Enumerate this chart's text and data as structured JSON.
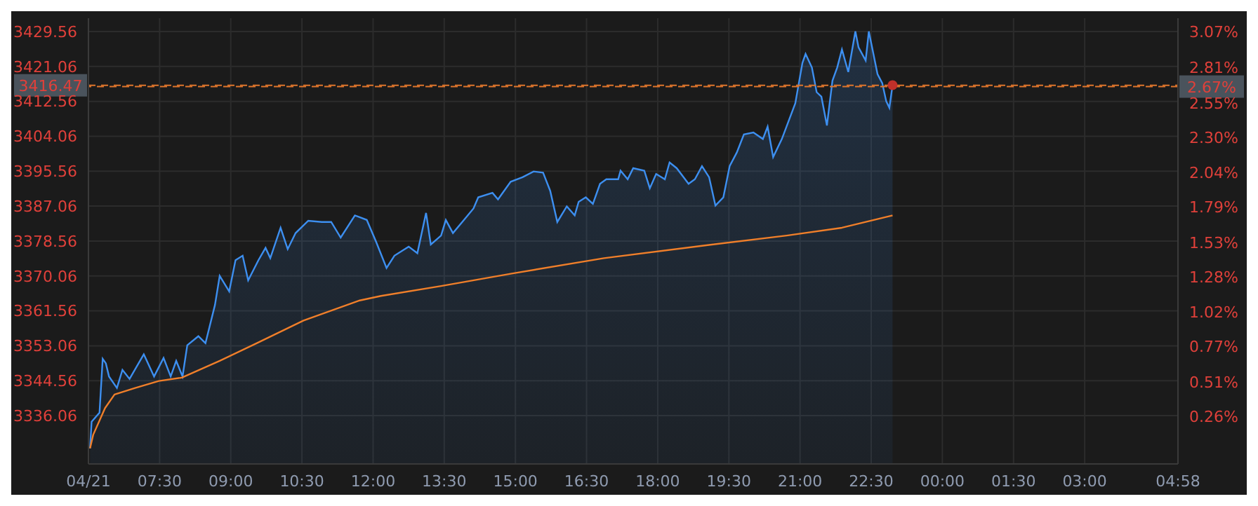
{
  "chart_data": {
    "type": "line",
    "xlim": [
      "--04-21T06:00",
      "--04-22T04:58"
    ],
    "xticks": [
      {
        "value": "--04-21T06:00",
        "label": "04/21"
      },
      {
        "value": "--04-21T07:30",
        "label": "07:30"
      },
      {
        "value": "--04-21T09:00",
        "label": "09:00"
      },
      {
        "value": "--04-21T10:30",
        "label": "10:30"
      },
      {
        "value": "--04-21T12:00",
        "label": "12:00"
      },
      {
        "value": "--04-21T13:30",
        "label": "13:30"
      },
      {
        "value": "--04-21T15:00",
        "label": "15:00"
      },
      {
        "value": "--04-21T16:30",
        "label": "16:30"
      },
      {
        "value": "--04-21T18:00",
        "label": "18:00"
      },
      {
        "value": "--04-21T19:30",
        "label": "19:30"
      },
      {
        "value": "--04-21T21:00",
        "label": "21:00"
      },
      {
        "value": "--04-21T22:30",
        "label": "22:30"
      },
      {
        "value": "--04-22T00:00",
        "label": "00:00"
      },
      {
        "value": "--04-22T01:30",
        "label": "01:30"
      },
      {
        "value": "--04-22T03:00",
        "label": "03:00"
      },
      {
        "value": "--04-22T04:58",
        "label": "04:58"
      }
    ],
    "ylim": [
      3324.3,
      3432.8
    ],
    "yticks": [
      3336.06,
      3344.56,
      3353.06,
      3361.56,
      3370.06,
      3378.56,
      3387.06,
      3395.56,
      3404.06,
      3412.56,
      3421.06,
      3429.56
    ],
    "y2lim": [
      -0.09,
      3.17
    ],
    "y2ticks": [
      {
        "value": 0.26,
        "label": "0.26%"
      },
      {
        "value": 0.51,
        "label": "0.51%"
      },
      {
        "value": 0.77,
        "label": "0.77%"
      },
      {
        "value": 1.02,
        "label": "1.02%"
      },
      {
        "value": 1.28,
        "label": "1.28%"
      },
      {
        "value": 1.53,
        "label": "1.53%"
      },
      {
        "value": 1.79,
        "label": "1.79%"
      },
      {
        "value": 2.04,
        "label": "2.04%"
      },
      {
        "value": 2.3,
        "label": "2.30%"
      },
      {
        "value": 2.55,
        "label": "2.55%"
      },
      {
        "value": 2.81,
        "label": "2.81%"
      },
      {
        "value": 3.07,
        "label": "3.07%"
      }
    ],
    "grid": true,
    "line_style": "solid",
    "ref_lines": [
      {
        "axis": "y",
        "value": 3416.47,
        "label": "3416.47",
        "color": "#e0762c",
        "line_style": "dashed"
      },
      {
        "axis": "y2",
        "value": 2.67,
        "label": "2.67%",
        "color": "#e0762c",
        "line_style": "dashed"
      }
    ],
    "series": [
      {
        "type": "area",
        "color": "#3d8ff0",
        "x": [
          "--04-21T06:02",
          "--04-21T06:04",
          "--04-21T06:14",
          "--04-21T06:18",
          "--04-21T06:22",
          "--04-21T06:26",
          "--04-21T06:36",
          "--04-21T06:43",
          "--04-21T06:52",
          "--04-21T07:10",
          "--04-21T07:23",
          "--04-21T07:35",
          "--04-21T07:44",
          "--04-21T07:51",
          "--04-21T07:59",
          "--04-21T08:05",
          "--04-21T08:19",
          "--04-21T08:28",
          "--04-21T08:40",
          "--04-21T08:46",
          "--04-21T08:58",
          "--04-21T09:06",
          "--04-21T09:15",
          "--04-21T09:22",
          "--04-21T09:35",
          "--04-21T09:44",
          "--04-21T09:50",
          "--04-21T10:03",
          "--04-21T10:12",
          "--04-21T10:22",
          "--04-21T10:38",
          "--04-21T10:55",
          "--04-21T11:07",
          "--04-21T11:19",
          "--04-21T11:37",
          "--04-21T11:52",
          "--04-21T12:04",
          "--04-21T12:17",
          "--04-21T12:27",
          "--04-21T12:45",
          "--04-21T12:56",
          "--04-21T13:07",
          "--04-21T13:13",
          "--04-21T13:26",
          "--04-21T13:32",
          "--04-21T13:41",
          "--04-21T13:55",
          "--04-21T14:07",
          "--04-21T14:13",
          "--04-21T14:31",
          "--04-21T14:38",
          "--04-21T14:54",
          "--04-21T15:09",
          "--04-21T15:23",
          "--04-21T15:35",
          "--04-21T15:44",
          "--04-21T15:53",
          "--04-21T16:05",
          "--04-21T16:15",
          "--04-21T16:20",
          "--04-21T16:29",
          "--04-21T16:38",
          "--04-21T16:47",
          "--04-21T16:55",
          "--04-21T17:10",
          "--04-21T17:13",
          "--04-21T17:22",
          "--04-21T17:29",
          "--04-21T17:43",
          "--04-21T17:50",
          "--04-21T17:58",
          "--04-21T18:09",
          "--04-21T18:15",
          "--04-21T18:24",
          "--04-21T18:39",
          "--04-21T18:47",
          "--04-21T18:56",
          "--04-21T19:05",
          "--04-21T19:13",
          "--04-21T19:23",
          "--04-21T19:31",
          "--04-21T19:40",
          "--04-21T19:49",
          "--04-21T20:01",
          "--04-21T20:13",
          "--04-21T20:19",
          "--04-21T20:26",
          "--04-21T20:37",
          "--04-21T20:54",
          "--04-21T21:03",
          "--04-21T21:07",
          "--04-21T21:15",
          "--04-21T21:21",
          "--04-21T21:27",
          "--04-21T21:34",
          "--04-21T21:41",
          "--04-21T21:47",
          "--04-21T21:53",
          "--04-21T22:01",
          "--04-21T22:10",
          "--04-21T22:14",
          "--04-21T22:23",
          "--04-21T22:27",
          "--04-21T22:38",
          "--04-21T22:44",
          "--04-21T22:49",
          "--04-21T22:53",
          "--04-21T22:57"
        ],
        "values": [
          3328.1,
          3334.6,
          3336.8,
          3349.9,
          3348.8,
          3345.6,
          3342.8,
          3347.2,
          3345.0,
          3351.0,
          3345.6,
          3350.1,
          3345.6,
          3349.4,
          3345.6,
          3353.2,
          3355.4,
          3353.7,
          3363.0,
          3370.1,
          3366.3,
          3373.9,
          3375.0,
          3369.0,
          3373.9,
          3376.9,
          3374.4,
          3381.8,
          3376.6,
          3380.5,
          3383.5,
          3383.2,
          3383.2,
          3379.4,
          3384.8,
          3383.7,
          3378.3,
          3372.0,
          3375.0,
          3377.2,
          3375.6,
          3385.4,
          3377.7,
          3379.9,
          3383.7,
          3380.5,
          3383.7,
          3386.5,
          3389.2,
          3390.3,
          3388.7,
          3393.0,
          3394.1,
          3395.5,
          3395.2,
          3390.8,
          3383.2,
          3387.0,
          3384.8,
          3388.1,
          3389.2,
          3387.6,
          3392.5,
          3393.6,
          3393.6,
          3395.7,
          3393.6,
          3396.3,
          3395.7,
          3391.4,
          3394.9,
          3393.6,
          3397.7,
          3396.3,
          3392.5,
          3393.6,
          3396.8,
          3394.1,
          3387.2,
          3389.2,
          3396.8,
          3400.1,
          3404.5,
          3405.0,
          3403.4,
          3406.4,
          3399.0,
          3403.4,
          3412.1,
          3421.9,
          3424.1,
          3420.8,
          3414.8,
          3413.7,
          3406.7,
          3417.6,
          3420.8,
          3425.2,
          3419.7,
          3429.6,
          3425.7,
          3422.5,
          3429.6,
          3419.2,
          3417.0,
          3412.6,
          3411.0,
          3416.5
        ]
      },
      {
        "color": "#f07f2a",
        "x": [
          "--04-21T06:02",
          "--04-21T06:06",
          "--04-21T06:21",
          "--04-21T06:33",
          "--04-21T06:59",
          "--04-21T07:29",
          "--04-21T07:58",
          "--04-21T08:46",
          "--04-21T09:33",
          "--04-21T10:32",
          "--04-21T11:43",
          "--04-21T12:10",
          "--04-21T13:26",
          "--04-21T14:54",
          "--04-21T16:52",
          "--04-21T18:56",
          "--04-21T20:43",
          "--04-21T21:53",
          "--04-21T22:57"
        ],
        "values": [
          3328.1,
          3331.4,
          3337.9,
          3341.2,
          3342.8,
          3344.5,
          3345.3,
          3349.4,
          3353.7,
          3359.2,
          3364.1,
          3365.2,
          3367.6,
          3370.6,
          3374.4,
          3377.4,
          3379.9,
          3381.8,
          3384.8
        ]
      },
      {
        "type": "scatter",
        "color": "#c0302a",
        "x": [
          "--04-21T22:57"
        ],
        "values": [
          3416.5
        ]
      }
    ]
  }
}
